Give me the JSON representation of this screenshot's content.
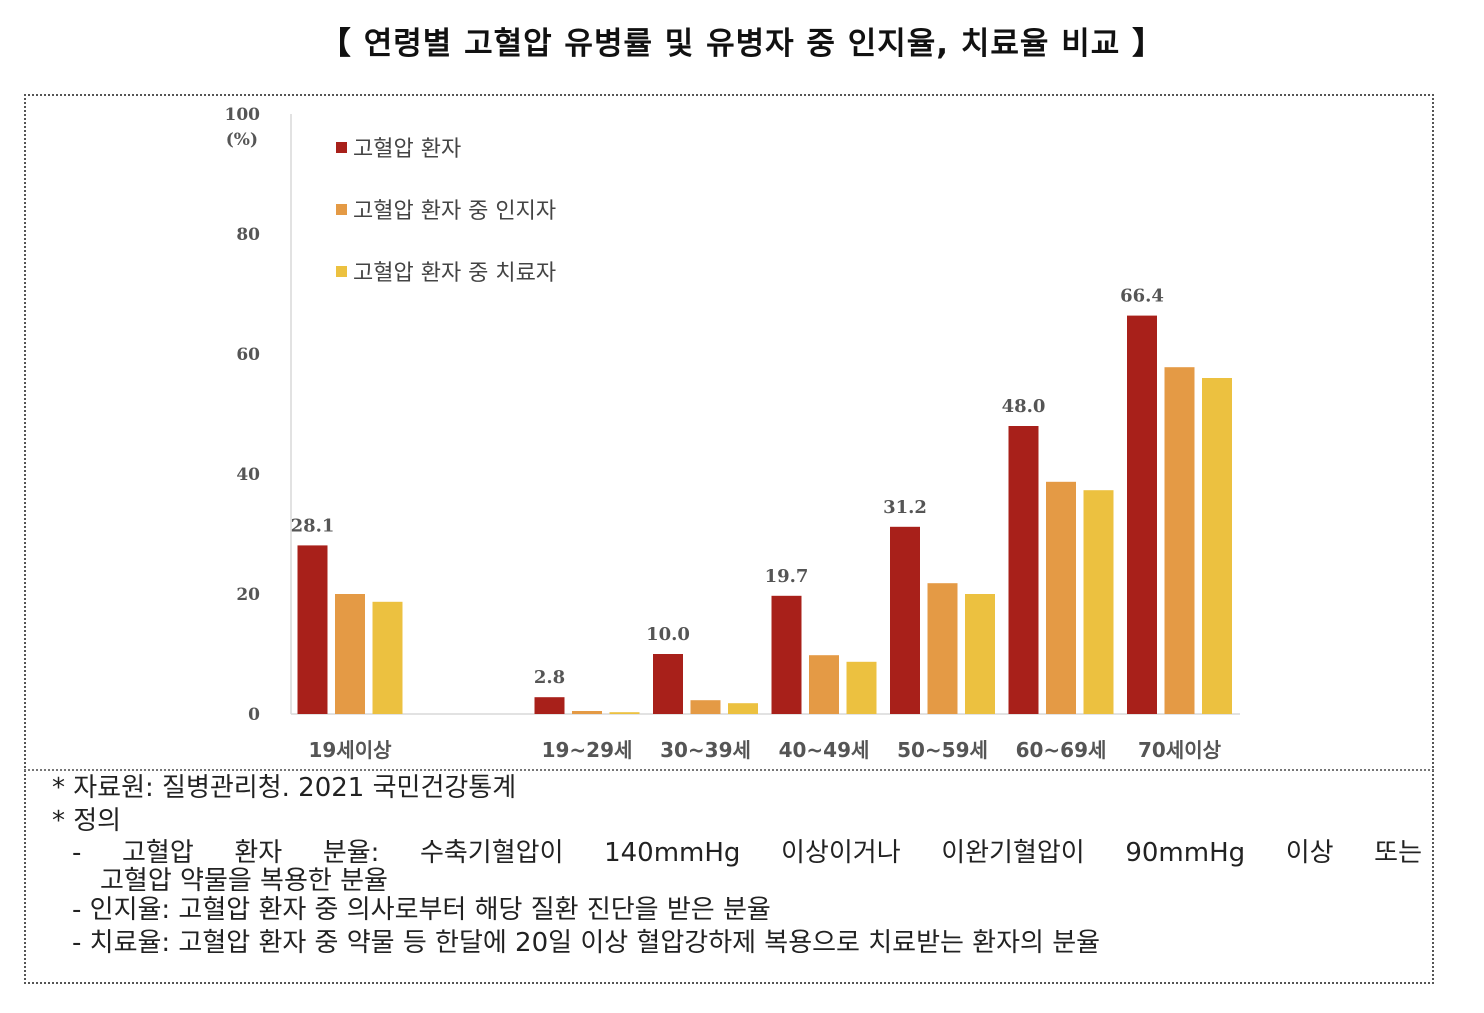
{
  "title": "【 연령별 고혈압 유병률 및 유병자 중 인지율, 치료율 비교 】",
  "chart_data": {
    "type": "bar",
    "title": "",
    "ylabel": "(%)",
    "xlabel": "",
    "ylim": [
      0,
      100
    ],
    "yticks": [
      0,
      20,
      40,
      60,
      80,
      100
    ],
    "grid": false,
    "legend_placement": "top-left",
    "categories": [
      "19세이상",
      "",
      "19~29세",
      "30~39세",
      "40~49세",
      "50~59세",
      "60~69세",
      "70세이상"
    ],
    "series": [
      {
        "name": "고혈압 환자",
        "color": "#a8201a",
        "values": [
          28.1,
          null,
          2.8,
          10.0,
          19.7,
          31.2,
          48.0,
          66.4
        ],
        "labels": [
          "28.1",
          "",
          "2.8",
          "10.0",
          "19.7",
          "31.2",
          "48.0",
          "66.4"
        ]
      },
      {
        "name": "고혈압 환자 중 인지자",
        "color": "#e49a45",
        "values": [
          20.0,
          null,
          0.5,
          2.3,
          9.8,
          21.8,
          38.7,
          57.8
        ]
      },
      {
        "name": "고혈압 환자 중 치료자",
        "color": "#ecc140",
        "values": [
          18.7,
          null,
          0.3,
          1.8,
          8.7,
          20.0,
          37.3,
          56.0
        ]
      }
    ]
  },
  "notes": {
    "source": "* 자료원: 질병관리청. 2021 국민건강통계",
    "definition_header": "* 정의",
    "def1_line1": "- 고혈압 환자 분율: 수축기혈압이 140mmHg 이상이거나 이완기혈압이 90mmHg 이상 또는",
    "def1_line2": "고혈압 약물을 복용한 분율",
    "def2": "- 인지율: 고혈압 환자 중 의사로부터 해당 질환 진단을 받은 분율",
    "def3": "- 치료율: 고혈압 환자 중 약물 등 한달에 20일 이상 혈압강하제 복용으로 치료받는 환자의 분율"
  }
}
